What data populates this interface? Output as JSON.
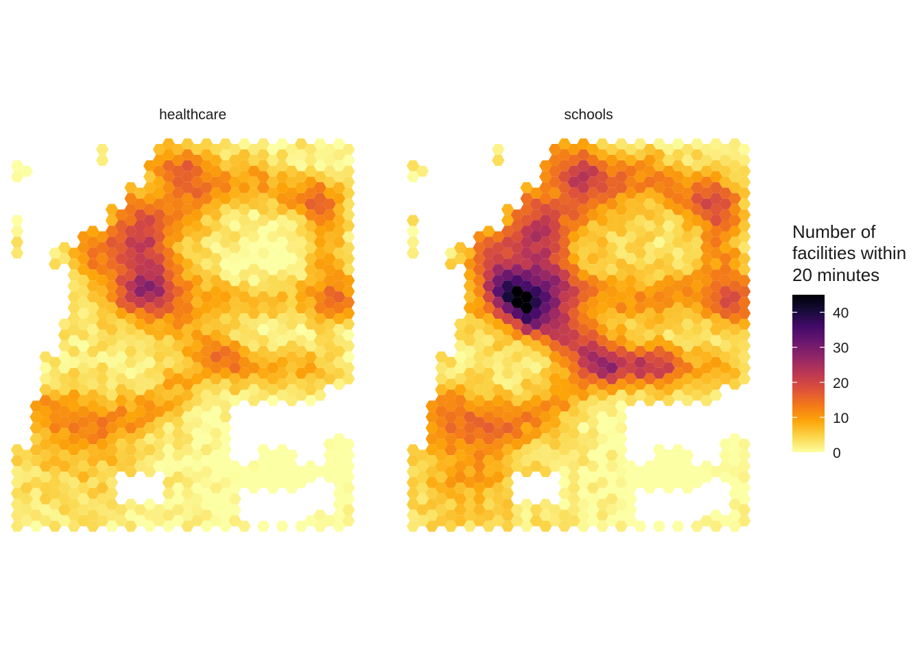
{
  "facets": [
    {
      "label": "healthcare",
      "metric": "healthcare"
    },
    {
      "label": "schools",
      "metric": "schools"
    }
  ],
  "legend": {
    "title_lines": [
      "Number of",
      "facilities within",
      "20 minutes"
    ],
    "ticks": [
      {
        "value": 40,
        "label": "40"
      },
      {
        "value": 30,
        "label": "30"
      },
      {
        "value": 20,
        "label": "20"
      },
      {
        "value": 10,
        "label": "10"
      },
      {
        "value": 0,
        "label": "0"
      }
    ],
    "range": [
      0,
      45
    ]
  },
  "palette": {
    "scale": "inferno (reversed)",
    "stops": [
      "#fcffa4",
      "#fbd64a",
      "#fca50a",
      "#f37819",
      "#dd513a",
      "#bc3754",
      "#932667",
      "#6a176e",
      "#420a68",
      "#160b39",
      "#000004"
    ]
  }
}
